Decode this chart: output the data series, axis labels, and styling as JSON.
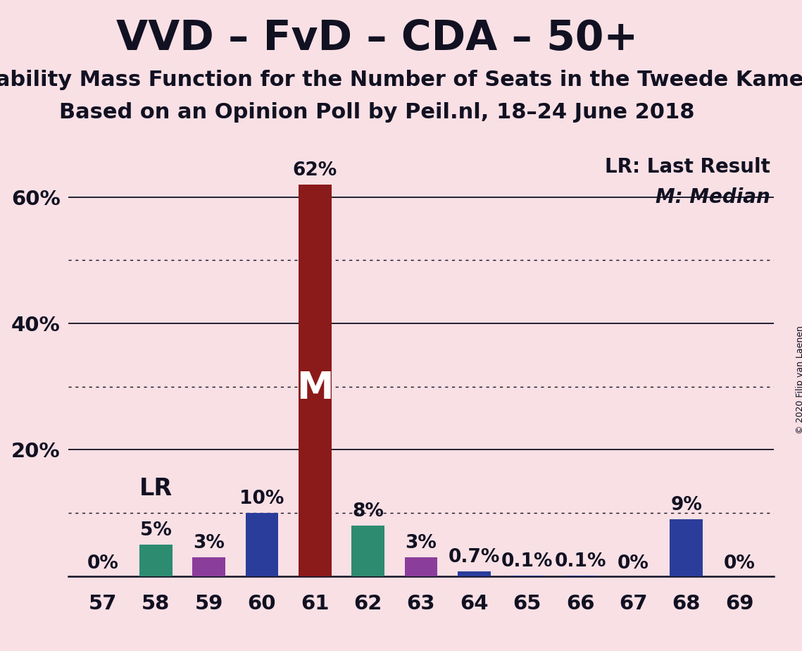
{
  "title": "VVD – FvD – CDA – 50+",
  "subtitle1": "Probability Mass Function for the Number of Seats in the Tweede Kamer",
  "subtitle2": "Based on an Opinion Poll by Peil.nl, 18–24 June 2018",
  "copyright": "© 2020 Filip van Laenen",
  "categories": [
    57,
    58,
    59,
    60,
    61,
    62,
    63,
    64,
    65,
    66,
    67,
    68,
    69
  ],
  "values": [
    0.0,
    5.0,
    3.0,
    10.0,
    62.0,
    8.0,
    3.0,
    0.7,
    0.1,
    0.1,
    0.0,
    9.0,
    0.0
  ],
  "labels": [
    "0%",
    "5%",
    "3%",
    "10%",
    "62%",
    "8%",
    "3%",
    "0.7%",
    "0.1%",
    "0.1%",
    "0%",
    "9%",
    "0%"
  ],
  "bar_colors": [
    "#f2d0d8",
    "#2d8b70",
    "#8b3d9b",
    "#2b3d9b",
    "#8b1a1a",
    "#2d8b70",
    "#8b3d9b",
    "#2b3d9b",
    "#2b3d9b",
    "#2b3d9b",
    "#f2d0d8",
    "#2b3d9b",
    "#f2d0d8"
  ],
  "background_color": "#f9e0e5",
  "ylim_max": 68,
  "solid_gridlines": [
    20,
    40,
    60
  ],
  "dotted_gridlines": [
    10,
    30,
    50
  ],
  "ytick_positions": [
    20,
    40,
    60
  ],
  "ytick_labels": [
    "20%",
    "40%",
    "60%"
  ],
  "legend_text1": "LR: Last Result",
  "legend_text2": "M: Median",
  "median_bar_seat": 61,
  "lr_bar_seat": 58,
  "title_fontsize": 42,
  "subtitle_fontsize": 22,
  "label_fontsize": 19,
  "tick_fontsize": 21,
  "show_label_threshold": 0.05
}
